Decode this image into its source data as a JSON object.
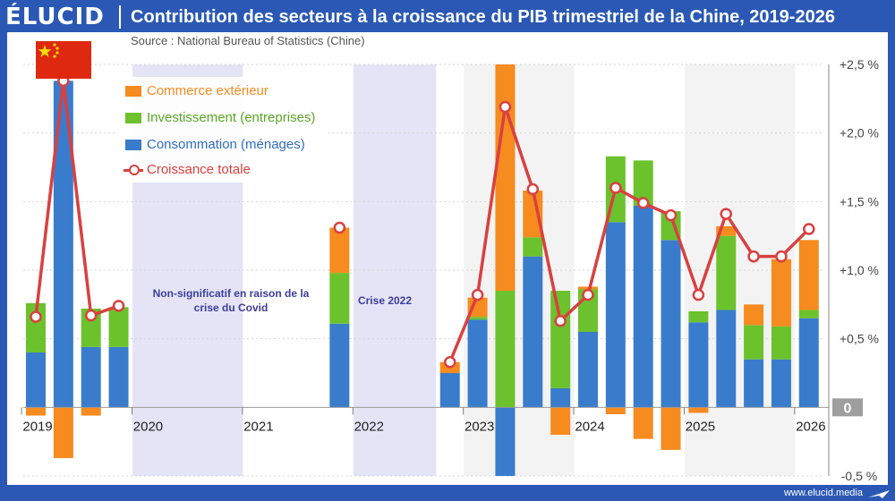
{
  "header": {
    "brand": "ÉLUCID",
    "title": "Contribution des secteurs à la croissance du PIB trimestriel de la Chine, 2019-2026"
  },
  "source": "Source : National Bureau of Statistics (Chine)",
  "footer": {
    "url": "www.elucid.media"
  },
  "notes": {
    "covid": "Non-significatif en raison de la crise du Covid",
    "crisis": "Crise 2022"
  },
  "colors": {
    "consumption": "#3a7ccc",
    "investment": "#6cc22c",
    "trade": "#f68b1f",
    "total": "#d94040",
    "shade": "#e4e4f6",
    "alt_band": "#f3f3f3",
    "zero_badge": "#9e9e9e"
  },
  "chart_data": {
    "type": "bar",
    "stacked": true,
    "title": "Contribution des secteurs à la croissance du PIB trimestriel de la Chine, 2019-2026",
    "ylim": [
      -0.5,
      2.5
    ],
    "yticks": [
      -0.5,
      0,
      0.5,
      1.0,
      1.5,
      2.0,
      2.5
    ],
    "ytick_labels": [
      "-0,5 %",
      "0",
      "+0,5 %",
      "+1,0 %",
      "+1,5 %",
      "+2,0 %",
      "+2,5 %"
    ],
    "xtick_labels": [
      "2019",
      "2020",
      "2021",
      "2022",
      "2023",
      "2024",
      "2025",
      "2026"
    ],
    "grid": true,
    "legend_position": "top-left",
    "categories": [
      "2019T1",
      "2019T2",
      "2019T3",
      "2019T4",
      "2020T1",
      "2020T2",
      "2020T3",
      "2020T4",
      "2021T1",
      "2021T2",
      "2021T3",
      "2021T4",
      "2022T1",
      "2022T2",
      "2022T3",
      "2022T4",
      "2023T1",
      "2023T2",
      "2023T3",
      "2023T4",
      "2024T1",
      "2024T2",
      "2024T3",
      "2024T4",
      "2025T1",
      "2025T2",
      "2025T3",
      "2025T4",
      "2026T1"
    ],
    "series": [
      {
        "name": "Commerce extérieur",
        "values": [
          -0.06,
          -0.37,
          -0.06,
          0,
          null,
          null,
          null,
          null,
          null,
          null,
          null,
          0.33,
          null,
          null,
          null,
          0.08,
          0.14,
          1.65,
          0.34,
          -0.2,
          0.02,
          -0.05,
          -0.23,
          -0.31,
          -0.04,
          0.07,
          0.15,
          0.49,
          0.51
        ]
      },
      {
        "name": "Investissement (entreprises)",
        "values": [
          0.36,
          null,
          0.28,
          0.29,
          null,
          null,
          null,
          null,
          null,
          null,
          null,
          0.37,
          null,
          null,
          null,
          0.0,
          0.02,
          0.85,
          0.14,
          0.71,
          0.31,
          0.48,
          0.33,
          0.21,
          0.08,
          0.54,
          0.25,
          0.24,
          0.06
        ]
      },
      {
        "name": "Consommation (ménages)",
        "values": [
          0.4,
          2.38,
          0.44,
          0.44,
          null,
          null,
          null,
          null,
          null,
          null,
          null,
          0.61,
          null,
          null,
          null,
          0.25,
          0.64,
          -0.5,
          1.1,
          0.14,
          0.55,
          1.35,
          1.47,
          1.22,
          0.62,
          0.71,
          0.35,
          0.35,
          0.65
        ]
      },
      {
        "name": "Croissance totale",
        "type": "line",
        "values": [
          0.66,
          2.38,
          0.67,
          0.74,
          null,
          null,
          null,
          null,
          null,
          null,
          null,
          1.31,
          null,
          null,
          null,
          0.33,
          0.82,
          2.19,
          1.59,
          0.63,
          0.82,
          1.6,
          1.49,
          1.4,
          0.82,
          1.41,
          1.1,
          1.1,
          1.3
        ]
      }
    ]
  }
}
